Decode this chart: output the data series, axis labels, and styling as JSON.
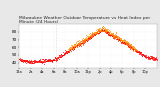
{
  "title": "Milwaukee Weather Outdoor Temperature vs Heat Index per Minute (24 Hours)",
  "title_fontsize": 3.2,
  "background_color": "#e8e8e8",
  "plot_bg_color": "#ffffff",
  "ylim": [
    33,
    90
  ],
  "ytick_values": [
    40,
    50,
    60,
    70,
    80
  ],
  "ylabel_fontsize": 3.0,
  "xlabel_fontsize": 2.5,
  "marker_size": 0.3,
  "temp_color": "#ff0000",
  "heat_color": "#ff8c00",
  "vline_x": 390,
  "vline_color": "#bbbbbb",
  "figwidth": 1.6,
  "figheight": 0.87,
  "dpi": 100
}
